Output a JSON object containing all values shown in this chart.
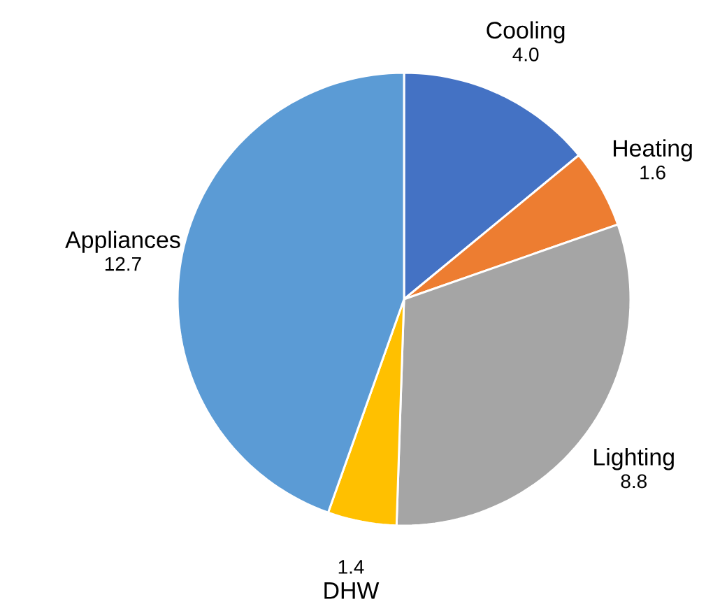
{
  "chart_data": {
    "type": "pie",
    "categories": [
      "Cooling",
      "Heating",
      "Lighting",
      "DHW",
      "Appliances"
    ],
    "values": [
      4.0,
      1.6,
      8.8,
      1.4,
      12.7
    ],
    "colors": [
      "#4472c4",
      "#ed7d31",
      "#a5a5a5",
      "#ffc000",
      "#5b9bd5"
    ],
    "value_labels": [
      "4.0",
      "1.6",
      "8.8",
      "1.4",
      "12.7"
    ]
  }
}
